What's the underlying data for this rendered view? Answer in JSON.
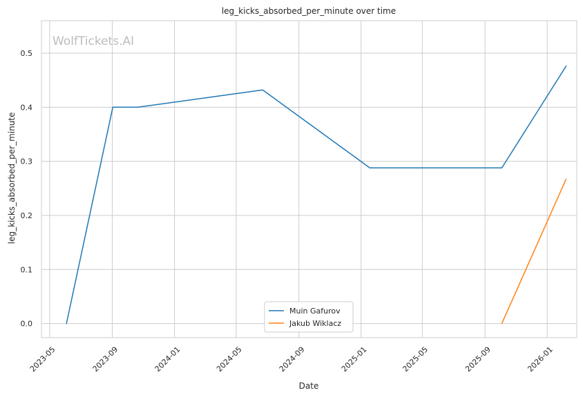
{
  "chart_data": {
    "type": "line",
    "title": "leg_kicks_absorbed_per_minute over time",
    "xlabel": "Date",
    "ylabel": "leg_kicks_absorbed_per_minute",
    "watermark": "WolfTickets.AI",
    "xlim": [
      "2023-04-15",
      "2026-02-28"
    ],
    "ylim": [
      -0.026,
      0.56
    ],
    "x_ticks": [
      "2023-05",
      "2023-09",
      "2024-01",
      "2024-05",
      "2024-09",
      "2025-01",
      "2025-05",
      "2025-09",
      "2026-01"
    ],
    "y_ticks": [
      "0.0",
      "0.1",
      "0.2",
      "0.3",
      "0.4",
      "0.5"
    ],
    "grid": true,
    "legend": "bottom-center",
    "series": [
      {
        "name": "Muin Gafurov",
        "color": "#1f77b4",
        "points": [
          {
            "x": "2023-06-03",
            "y": 0.0
          },
          {
            "x": "2023-09-02",
            "y": 0.4
          },
          {
            "x": "2023-10-21",
            "y": 0.4
          },
          {
            "x": "2024-06-22",
            "y": 0.432
          },
          {
            "x": "2025-01-18",
            "y": 0.288
          },
          {
            "x": "2025-10-04",
            "y": 0.288
          },
          {
            "x": "2026-02-07",
            "y": 0.476
          }
        ]
      },
      {
        "name": "Jakub Wiklacz",
        "color": "#ff7f0e",
        "points": [
          {
            "x": "2025-10-04",
            "y": 0.0
          },
          {
            "x": "2026-02-07",
            "y": 0.267
          }
        ]
      }
    ]
  }
}
